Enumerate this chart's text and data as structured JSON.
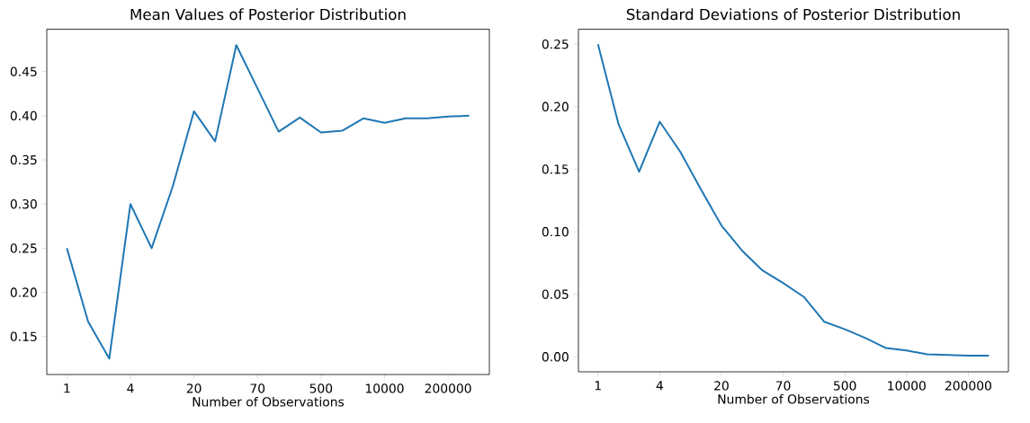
{
  "chart_data": [
    {
      "type": "line",
      "title": "Mean Values of Posterior Distribution",
      "xlabel": "Number of Observations",
      "color": "#1f77b4",
      "categories": [
        "1",
        null,
        null,
        "4",
        null,
        null,
        "20",
        null,
        null,
        "70",
        null,
        null,
        "500",
        null,
        null,
        "10000",
        null,
        null,
        "200000",
        null
      ],
      "values": [
        0.25,
        0.167,
        0.125,
        0.3,
        0.25,
        0.32,
        0.405,
        0.371,
        0.48,
        0.431,
        0.382,
        0.398,
        0.381,
        0.383,
        0.397,
        0.392,
        0.397,
        0.397,
        0.399,
        0.4
      ],
      "ylim": [
        0.107,
        0.498
      ],
      "yticks": [
        {
          "value": 0.15,
          "label": "0.15"
        },
        {
          "value": 0.2,
          "label": "0.20"
        },
        {
          "value": 0.25,
          "label": "0.25"
        },
        {
          "value": 0.3,
          "label": "0.30"
        },
        {
          "value": 0.35,
          "label": "0.35"
        },
        {
          "value": 0.4,
          "label": "0.40"
        },
        {
          "value": 0.45,
          "label": "0.45"
        }
      ]
    },
    {
      "type": "line",
      "title": "Standard Deviations of Posterior Distribution",
      "xlabel": "Number of Observations",
      "color": "#1f77b4",
      "categories": [
        "1",
        null,
        null,
        "4",
        null,
        null,
        "20",
        null,
        null,
        "70",
        null,
        null,
        "500",
        null,
        null,
        "10000",
        null,
        null,
        "200000",
        null
      ],
      "values": [
        0.25,
        0.186,
        0.148,
        0.188,
        0.164,
        0.134,
        0.105,
        0.085,
        0.069,
        0.059,
        0.048,
        0.028,
        0.022,
        0.015,
        0.007,
        0.005,
        0.002,
        0.0015,
        0.001,
        0.001
      ],
      "ylim": [
        -0.012,
        0.262
      ],
      "yticks": [
        {
          "value": 0.0,
          "label": "0.00"
        },
        {
          "value": 0.05,
          "label": "0.05"
        },
        {
          "value": 0.1,
          "label": "0.10"
        },
        {
          "value": 0.15,
          "label": "0.15"
        },
        {
          "value": 0.2,
          "label": "0.20"
        },
        {
          "value": 0.25,
          "label": "0.25"
        }
      ]
    }
  ]
}
